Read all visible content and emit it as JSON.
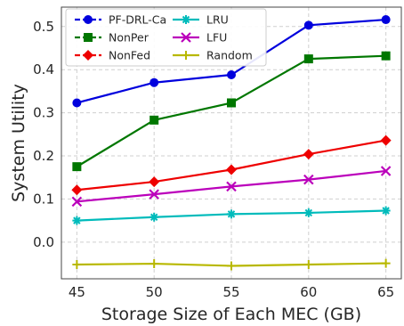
{
  "chart_data": {
    "type": "line",
    "title": "",
    "xlabel": "Storage Size of Each MEC (GB)",
    "ylabel": "System Utility",
    "x": [
      45,
      50,
      55,
      60,
      65
    ],
    "xticks": [
      "45",
      "50",
      "55",
      "60",
      "65"
    ],
    "yticks": [
      "0.0",
      "0.1",
      "0.2",
      "0.3",
      "0.4",
      "0.5"
    ],
    "xlim": [
      44,
      66
    ],
    "ylim": [
      -0.085,
      0.545
    ],
    "grid": true,
    "legend_position": "top-left",
    "series": [
      {
        "name": "PF-DRL-Ca",
        "color": "#0000dd",
        "marker": "circle",
        "dash": true,
        "values": [
          0.323,
          0.37,
          0.388,
          0.503,
          0.516
        ]
      },
      {
        "name": "NonPer",
        "color": "#007700",
        "marker": "square",
        "dash": true,
        "values": [
          0.175,
          0.283,
          0.323,
          0.425,
          0.432
        ]
      },
      {
        "name": "NonFed",
        "color": "#ee0000",
        "marker": "diamond",
        "dash": true,
        "values": [
          0.121,
          0.14,
          0.168,
          0.204,
          0.236
        ]
      },
      {
        "name": "LRU",
        "color": "#00bbbb",
        "marker": "star",
        "dash": false,
        "values": [
          0.05,
          0.058,
          0.065,
          0.068,
          0.073
        ]
      },
      {
        "name": "LFU",
        "color": "#bb00bb",
        "marker": "x",
        "dash": false,
        "values": [
          0.094,
          0.111,
          0.129,
          0.145,
          0.165
        ]
      },
      {
        "name": "Random",
        "color": "#b8b800",
        "marker": "plus",
        "dash": false,
        "values": [
          -0.052,
          -0.05,
          -0.055,
          -0.052,
          -0.049
        ]
      }
    ]
  }
}
